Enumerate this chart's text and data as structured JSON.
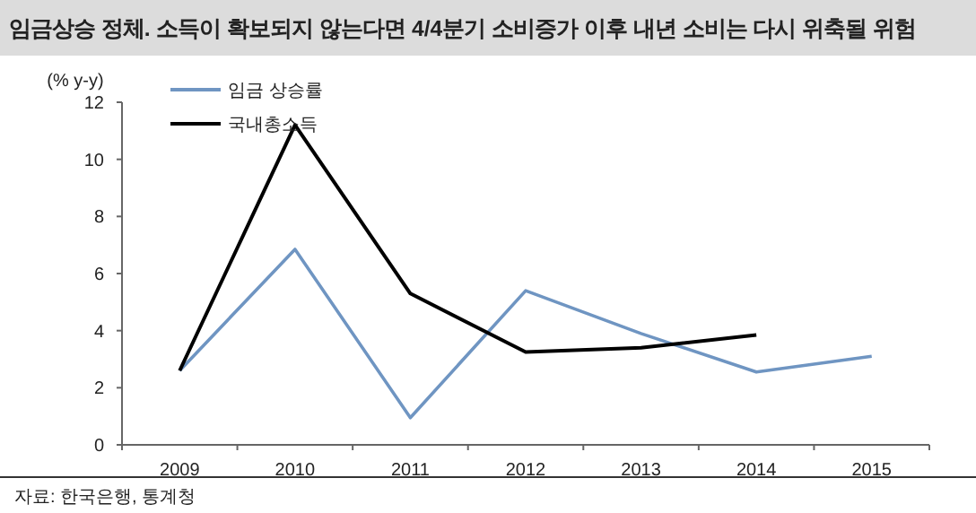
{
  "chart_data": {
    "type": "line",
    "title": "임금상승 정체. 소득이 확보되지 않는다면 4/4분기 소비증가 이후 내년 소비는 다시 위축될 위험",
    "ylabel": "(% y-y)",
    "categories": [
      "2009",
      "2010",
      "2011",
      "2012",
      "2013",
      "2014",
      "2015"
    ],
    "series": [
      {
        "name": "임금 상승률",
        "color": "#6f95c2",
        "values": [
          2.6,
          6.85,
          0.95,
          5.4,
          3.9,
          2.55,
          3.1
        ]
      },
      {
        "name": "국내총소득",
        "color": "#000000",
        "values": [
          2.6,
          11.2,
          5.3,
          3.25,
          3.4,
          3.85,
          null
        ]
      }
    ],
    "ylim": [
      0,
      12
    ],
    "yticks": [
      0,
      2,
      4,
      6,
      8,
      10,
      12
    ],
    "grid": false,
    "legend": "top left",
    "marker": "none",
    "line_style": "solid",
    "annotations": [
      "자료: 한국은행, 통계청"
    ]
  }
}
